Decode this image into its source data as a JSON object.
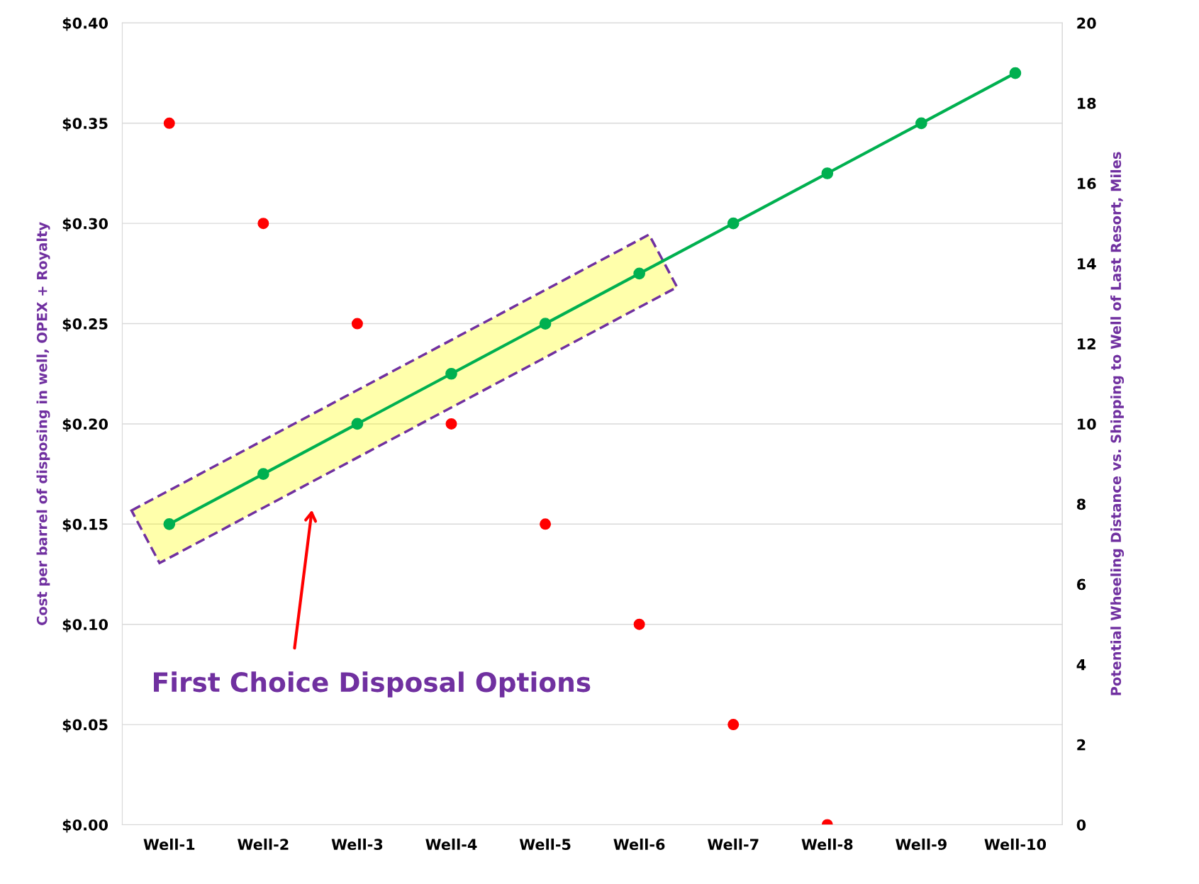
{
  "chart_data": {
    "type": "scatter",
    "categories": [
      "Well-1",
      "Well-2",
      "Well-3",
      "Well-4",
      "Well-5",
      "Well-6",
      "Well-7",
      "Well-8",
      "Well-9",
      "Well-10"
    ],
    "ylabel": "Cost per barrel of disposing in well, OPEX + Royalty",
    "y2label": "Potential Wheeling Distance vs. Shipping to Well of Last Resort, Miles",
    "series": [
      {
        "color": "#ff0000",
        "values": [
          0.35,
          0.3,
          0.25,
          0.2,
          0.15,
          0.1,
          0.05,
          0.0,
          null,
          null
        ]
      },
      {
        "type": "line",
        "axis": "y2",
        "color": "#00b050",
        "values": [
          7.5,
          8.75,
          10,
          11.25,
          12.5,
          13.75,
          15,
          16.25,
          17.5,
          18.75
        ]
      }
    ],
    "ylim": [
      0,
      0.4
    ],
    "yticks": [
      {
        "value": 0,
        "label": "$0.00"
      },
      {
        "value": 0.05,
        "label": "$0.05"
      },
      {
        "value": 0.1,
        "label": "$0.10"
      },
      {
        "value": 0.15,
        "label": "$0.15"
      },
      {
        "value": 0.2,
        "label": "$0.20"
      },
      {
        "value": 0.25,
        "label": "$0.25"
      },
      {
        "value": 0.3,
        "label": "$0.30"
      },
      {
        "value": 0.35,
        "label": "$0.35"
      },
      {
        "value": 0.4,
        "label": "$0.40"
      }
    ],
    "y2lim": [
      0,
      20
    ],
    "y2ticks": [
      0,
      2,
      4,
      6,
      8,
      10,
      12,
      14,
      16,
      18,
      20
    ],
    "annotations": [
      "First Choice Disposal Options"
    ],
    "grid": "y",
    "marker": "circle",
    "line_style": "solid",
    "legend": false
  }
}
